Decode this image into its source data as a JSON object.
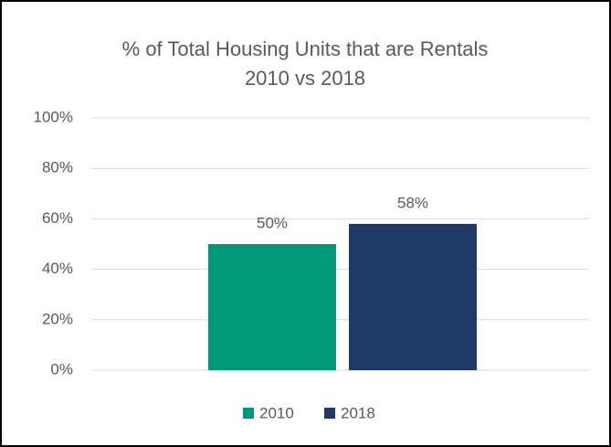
{
  "chart_data": {
    "type": "bar",
    "title": [
      "% of Total Housing Units that are Rentals",
      "2010 vs 2018"
    ],
    "categories": [
      null
    ],
    "series": [
      {
        "name": "2010",
        "color": "#009877",
        "values": [
          50
        ],
        "value_labels": [
          "50%"
        ]
      },
      {
        "name": "2018",
        "color": "#1f3864",
        "values": [
          58
        ],
        "value_labels": [
          "58%"
        ]
      }
    ],
    "ylim": [
      0,
      100
    ],
    "yticks": [
      {
        "value": 0,
        "label": "0%"
      },
      {
        "value": 20,
        "label": "20%"
      },
      {
        "value": 40,
        "label": "40%"
      },
      {
        "value": 60,
        "label": "60%"
      },
      {
        "value": 80,
        "label": "80%"
      },
      {
        "value": 100,
        "label": "100%"
      }
    ],
    "grid": true,
    "legend": "bottom"
  }
}
